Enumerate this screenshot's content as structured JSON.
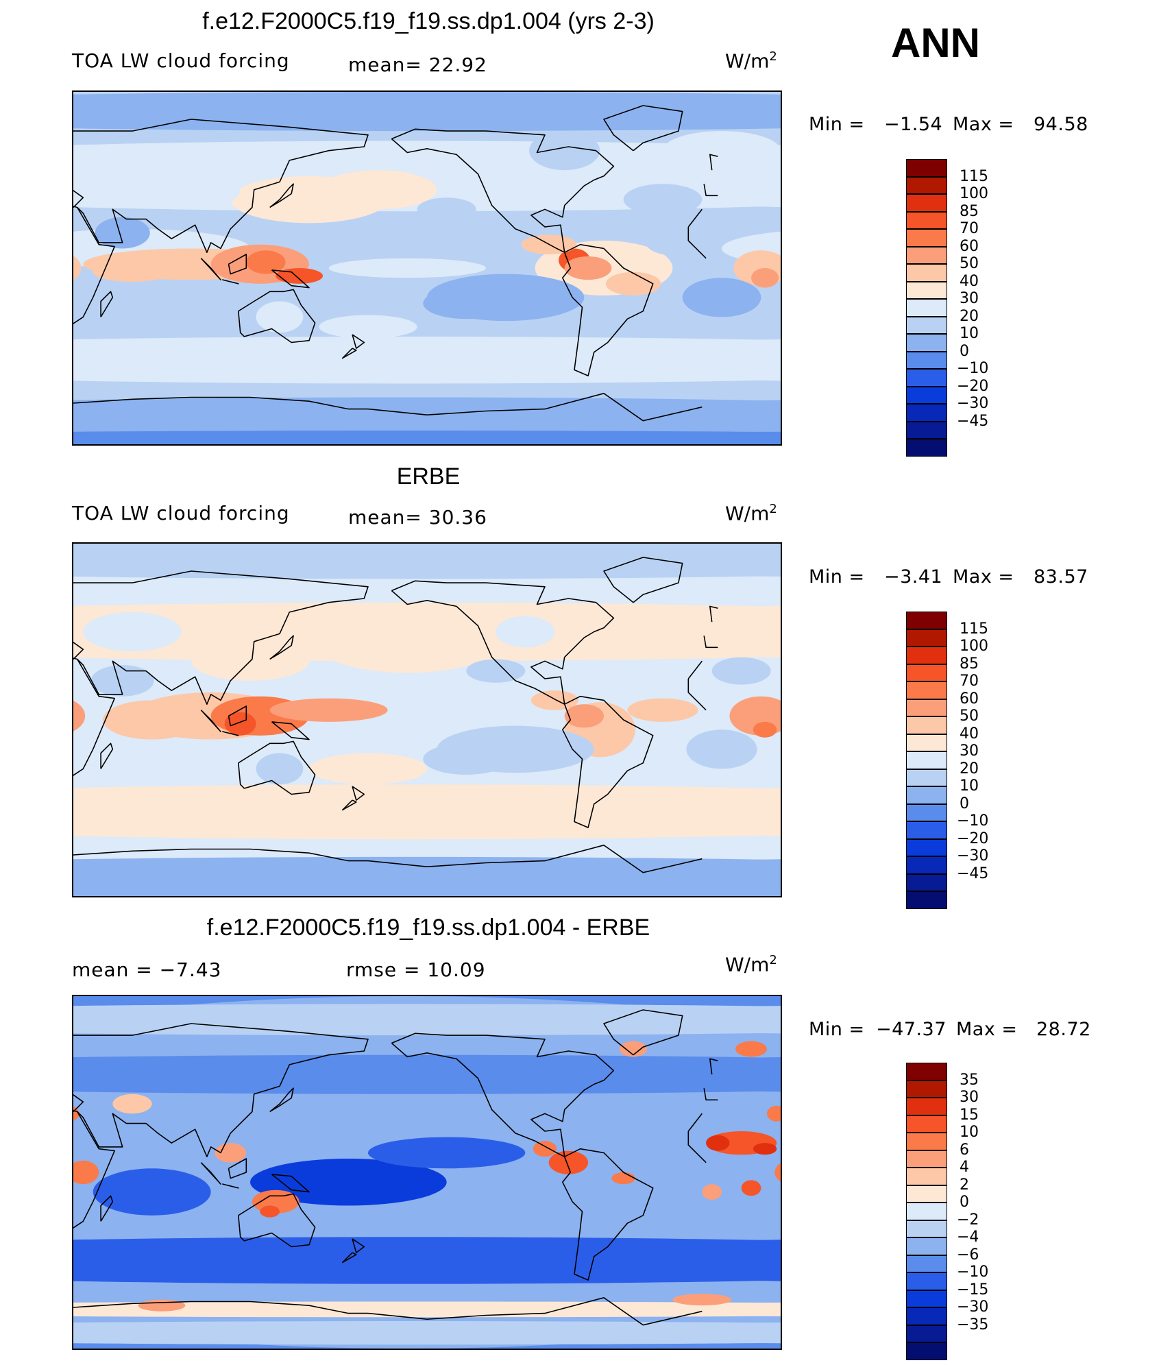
{
  "header": {
    "annotation": "ANN"
  },
  "panels": [
    {
      "title": "f.e12.F2000C5.f19_f19.ss.dp1.004 (yrs 2-3)",
      "left_label": "TOA LW cloud forcing",
      "center_label": "mean=   22.92",
      "units": "W/m",
      "units_sup": "2",
      "min_label": "Min  =",
      "min_value": "−1.54",
      "max_label": "Max  =",
      "max_value": "94.58",
      "colorbar": {
        "colors": [
          "#7f0000",
          "#b01800",
          "#e03010",
          "#f55528",
          "#fa7a4a",
          "#fb9f7a",
          "#fcc8a8",
          "#fde8d6",
          "#dceaf9",
          "#b9d2f3",
          "#8cb2ef",
          "#5a8cec",
          "#2b5ee8",
          "#0a3cdc",
          "#0828b8",
          "#061b94",
          "#040d70"
        ],
        "labels": [
          "115",
          "100",
          "85",
          "70",
          "60",
          "50",
          "40",
          "30",
          "20",
          "10",
          "0",
          "−10",
          "−20",
          "−30",
          "−45"
        ]
      }
    },
    {
      "title": "ERBE",
      "left_label": "TOA LW cloud forcing",
      "center_label": "mean=   30.36",
      "units": "W/m",
      "units_sup": "2",
      "min_label": "Min  =",
      "min_value": "−3.41",
      "max_label": "Max  =",
      "max_value": "83.57",
      "colorbar": {
        "colors": [
          "#7f0000",
          "#b01800",
          "#e03010",
          "#f55528",
          "#fa7a4a",
          "#fb9f7a",
          "#fcc8a8",
          "#fde8d6",
          "#dceaf9",
          "#b9d2f3",
          "#8cb2ef",
          "#5a8cec",
          "#2b5ee8",
          "#0a3cdc",
          "#0828b8",
          "#061b94",
          "#040d70"
        ],
        "labels": [
          "115",
          "100",
          "85",
          "70",
          "60",
          "50",
          "40",
          "30",
          "20",
          "10",
          "0",
          "−10",
          "−20",
          "−30",
          "−45"
        ]
      }
    },
    {
      "title": "f.e12.F2000C5.f19_f19.ss.dp1.004 - ERBE",
      "left_label": "mean =   −7.43",
      "center_label": "rmse =   10.09",
      "units": "W/m",
      "units_sup": "2",
      "min_label": "Min  =",
      "min_value": "−47.37",
      "max_label": "Max  =",
      "max_value": "28.72",
      "colorbar": {
        "colors": [
          "#7f0000",
          "#b01800",
          "#e03010",
          "#f55528",
          "#fa7a4a",
          "#fb9f7a",
          "#fcc8a8",
          "#fde8d6",
          "#dceaf9",
          "#b9d2f3",
          "#8cb2ef",
          "#5a8cec",
          "#2b5ee8",
          "#0a3cdc",
          "#0828b8",
          "#061b94",
          "#040d70"
        ],
        "labels": [
          "35",
          "30",
          "15",
          "10",
          "6",
          "4",
          "2",
          "0",
          "−2",
          "−4",
          "−6",
          "−10",
          "−15",
          "−30",
          "−35"
        ]
      }
    }
  ],
  "chart_data": [
    {
      "type": "heatmap",
      "title": "f.e12.F2000C5.f19_f19.ss.dp1.004 (yrs 2-3)",
      "variable": "TOA LW cloud forcing",
      "units": "W/m2",
      "mean": 22.92,
      "min": -1.54,
      "max": 94.58,
      "contour_levels": [
        -45,
        -30,
        -20,
        -10,
        0,
        10,
        20,
        30,
        40,
        50,
        60,
        70,
        85,
        100,
        115
      ],
      "projection": "cylindrical equidistant, Pacific-centered",
      "background_level": 15,
      "regions": [
        {
          "name": "Maritime Continent / West Pacific warm pool",
          "lon": 125,
          "lat": 0,
          "value": 75
        },
        {
          "name": "Northwest South America",
          "lon": -75,
          "lat": 3,
          "value": 85
        },
        {
          "name": "Equatorial Africa",
          "lon": 20,
          "lat": -3,
          "value": 45
        },
        {
          "name": "Indian Ocean ITCZ",
          "lon": 80,
          "lat": -3,
          "value": 45
        },
        {
          "name": "Central America",
          "lon": -85,
          "lat": 12,
          "value": 55
        },
        {
          "name": "Amazon",
          "lon": -58,
          "lat": -6,
          "value": 45
        },
        {
          "name": "SE Pacific stratocumulus",
          "lon": -110,
          "lat": -15,
          "value": 0
        },
        {
          "name": "SE Atlantic",
          "lon": 0,
          "lat": -15,
          "value": 5
        },
        {
          "name": "North Pacific",
          "lon": 180,
          "lat": 40,
          "value": 32
        },
        {
          "name": "Southern Ocean",
          "lon": 0,
          "lat": -50,
          "value": 25
        },
        {
          "name": "Antarctica",
          "lon": 0,
          "lat": -80,
          "value": -5
        }
      ]
    },
    {
      "type": "heatmap",
      "title": "ERBE",
      "variable": "TOA LW cloud forcing",
      "units": "W/m2",
      "mean": 30.36,
      "min": -3.41,
      "max": 83.57,
      "contour_levels": [
        -45,
        -30,
        -20,
        -10,
        0,
        10,
        20,
        30,
        40,
        50,
        60,
        70,
        85,
        100,
        115
      ],
      "projection": "cylindrical equidistant, Pacific-centered",
      "background_level": 25,
      "regions": [
        {
          "name": "Maritime Continent / West Pacific warm pool",
          "lon": 120,
          "lat": 0,
          "value": 65
        },
        {
          "name": "Western Pacific ITCZ",
          "lon": 165,
          "lat": 3,
          "value": 55
        },
        {
          "name": "Equatorial Africa",
          "lon": 20,
          "lat": 0,
          "value": 55
        },
        {
          "name": "Amazon",
          "lon": -62,
          "lat": -5,
          "value": 50
        },
        {
          "name": "SE Pacific stratocumulus",
          "lon": -105,
          "lat": -15,
          "value": 12
        },
        {
          "name": "SE Atlantic",
          "lon": 0,
          "lat": -15,
          "value": 12
        },
        {
          "name": "North Pacific",
          "lon": 180,
          "lat": 40,
          "value": 35
        },
        {
          "name": "Southern Ocean",
          "lon": 0,
          "lat": -50,
          "value": 35
        },
        {
          "name": "Antarctica",
          "lon": 0,
          "lat": -80,
          "value": 10
        }
      ]
    },
    {
      "type": "heatmap",
      "title": "f.e12.F2000C5.f19_f19.ss.dp1.004 - ERBE",
      "variable": "TOA LW cloud forcing difference",
      "units": "W/m2",
      "mean": -7.43,
      "rmse": 10.09,
      "min": -47.37,
      "max": 28.72,
      "contour_levels": [
        -35,
        -30,
        -15,
        -10,
        -6,
        -4,
        -2,
        0,
        2,
        4,
        6,
        10,
        15,
        30,
        35
      ],
      "projection": "cylindrical equidistant, Pacific-centered",
      "background_level": -8,
      "regions": [
        {
          "name": "North Africa / Sahel",
          "lon": 15,
          "lat": 15,
          "value": 12
        },
        {
          "name": "East Africa",
          "lon": 35,
          "lat": -2,
          "value": 10
        },
        {
          "name": "Northern Australia",
          "lon": 133,
          "lat": -15,
          "value": 8
        },
        {
          "name": "Central America / NW South America",
          "lon": -78,
          "lat": 5,
          "value": 15
        },
        {
          "name": "Scandinavia",
          "lon": 15,
          "lat": 62,
          "value": 6
        },
        {
          "name": "Tropical oceans",
          "lon": 170,
          "lat": -10,
          "value": -15
        },
        {
          "name": "Southern Ocean",
          "lon": 60,
          "lat": -50,
          "value": -12
        },
        {
          "name": "Antarctic coast",
          "lon": 0,
          "lat": -72,
          "value": 4
        }
      ]
    }
  ]
}
